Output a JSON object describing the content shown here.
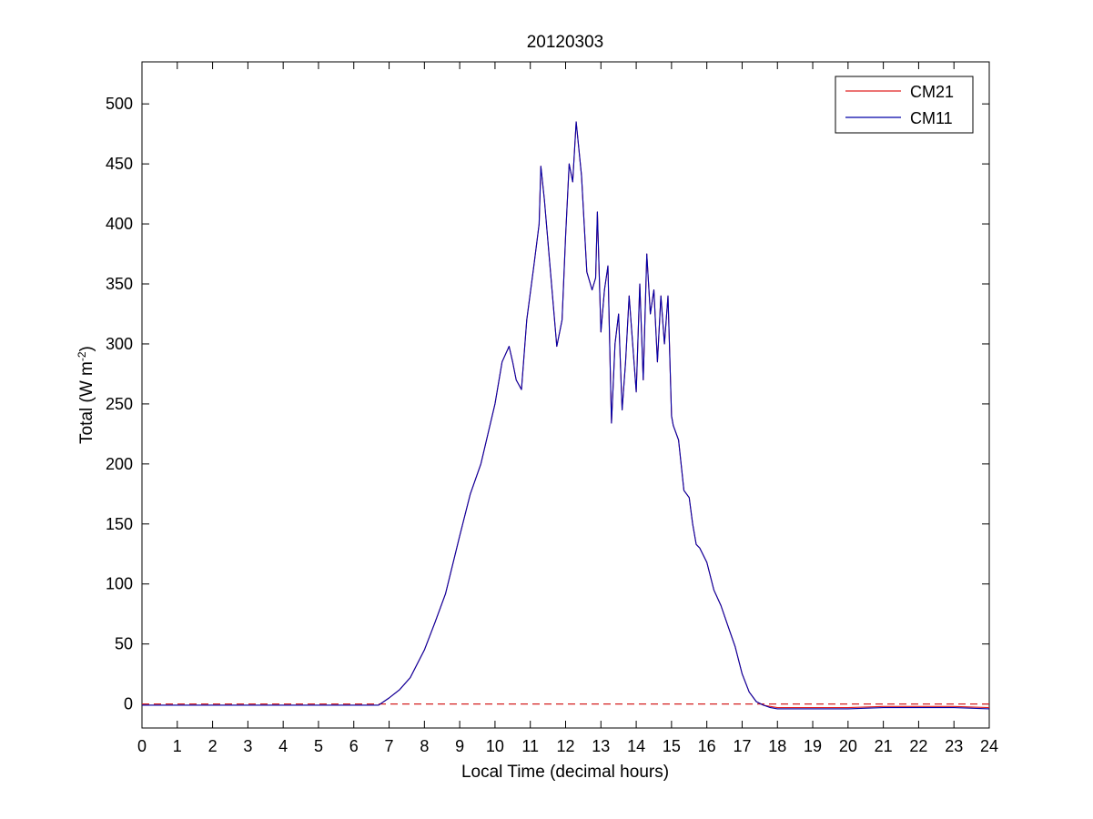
{
  "chart_data": {
    "type": "line",
    "title": "20120303",
    "xlabel": "Local Time (decimal hours)",
    "ylabel_main": "Total (W m",
    "ylabel_sup": "-2",
    "ylabel_close": ")",
    "xlim": [
      0,
      24
    ],
    "ylim": [
      -20,
      535
    ],
    "xticks": [
      0,
      1,
      2,
      3,
      4,
      5,
      6,
      7,
      8,
      9,
      10,
      11,
      12,
      13,
      14,
      15,
      16,
      17,
      18,
      19,
      20,
      21,
      22,
      23,
      24
    ],
    "yticks": [
      0,
      50,
      100,
      150,
      200,
      250,
      300,
      350,
      400,
      450,
      500
    ],
    "grid": false,
    "legend": "top-right",
    "reference_line": {
      "y": 0,
      "color": "#d42020",
      "style": "dashed"
    },
    "series": [
      {
        "name": "CM21",
        "color": "#e02020",
        "x": [
          0,
          1,
          2,
          3,
          4,
          5,
          6,
          6.7,
          7.0,
          7.3,
          7.6,
          8.0,
          8.3,
          8.6,
          9.0,
          9.3,
          9.6,
          10.0,
          10.2,
          10.4,
          10.5,
          10.6,
          10.75,
          10.9,
          11.1,
          11.25,
          11.3,
          11.4,
          11.55,
          11.75,
          11.9,
          12.0,
          12.1,
          12.2,
          12.3,
          12.45,
          12.6,
          12.75,
          12.85,
          12.9,
          13.0,
          13.1,
          13.2,
          13.3,
          13.4,
          13.5,
          13.6,
          13.7,
          13.8,
          13.9,
          14.0,
          14.1,
          14.2,
          14.3,
          14.4,
          14.5,
          14.6,
          14.7,
          14.8,
          14.9,
          15.0,
          15.05,
          15.2,
          15.35,
          15.5,
          15.6,
          15.7,
          15.8,
          16.0,
          16.2,
          16.4,
          16.6,
          16.8,
          17.0,
          17.2,
          17.4,
          17.6,
          17.8,
          18.0,
          18.2,
          19,
          20,
          21,
          22,
          23,
          24
        ],
        "y": [
          -1,
          -1,
          -1,
          -1,
          -1,
          -1,
          -1,
          -1,
          5,
          12,
          22,
          45,
          68,
          92,
          140,
          175,
          200,
          250,
          285,
          298,
          285,
          270,
          262,
          320,
          365,
          400,
          448,
          420,
          368,
          298,
          320,
          390,
          450,
          435,
          485,
          440,
          360,
          345,
          355,
          410,
          310,
          345,
          365,
          234,
          300,
          325,
          245,
          285,
          340,
          300,
          260,
          350,
          270,
          375,
          325,
          345,
          285,
          340,
          300,
          340,
          240,
          232,
          220,
          178,
          172,
          150,
          133,
          130,
          118,
          95,
          82,
          65,
          48,
          25,
          10,
          2,
          -1,
          -2,
          -3,
          -3,
          -3,
          -3,
          -2,
          -2,
          -2,
          -3
        ]
      },
      {
        "name": "CM11",
        "color": "#0000a8",
        "x": [
          0,
          1,
          2,
          3,
          4,
          5,
          6,
          6.7,
          7.0,
          7.3,
          7.6,
          8.0,
          8.3,
          8.6,
          9.0,
          9.3,
          9.6,
          10.0,
          10.2,
          10.4,
          10.5,
          10.6,
          10.75,
          10.9,
          11.1,
          11.25,
          11.3,
          11.4,
          11.55,
          11.75,
          11.9,
          12.0,
          12.1,
          12.2,
          12.3,
          12.45,
          12.6,
          12.75,
          12.85,
          12.9,
          13.0,
          13.1,
          13.2,
          13.3,
          13.4,
          13.5,
          13.6,
          13.7,
          13.8,
          13.9,
          14.0,
          14.1,
          14.2,
          14.3,
          14.4,
          14.5,
          14.6,
          14.7,
          14.8,
          14.9,
          15.0,
          15.05,
          15.2,
          15.35,
          15.5,
          15.6,
          15.7,
          15.8,
          16.0,
          16.2,
          16.4,
          16.6,
          16.8,
          17.0,
          17.2,
          17.4,
          17.6,
          17.8,
          18.0,
          18.2,
          19,
          20,
          21,
          22,
          23,
          24
        ],
        "y": [
          -1,
          -1,
          -1,
          -1,
          -1,
          -1,
          -1,
          -1,
          5,
          12,
          22,
          45,
          68,
          92,
          140,
          175,
          200,
          250,
          285,
          298,
          285,
          270,
          262,
          320,
          365,
          400,
          448,
          420,
          368,
          298,
          320,
          390,
          450,
          435,
          485,
          440,
          360,
          345,
          355,
          410,
          310,
          345,
          365,
          234,
          300,
          325,
          245,
          285,
          340,
          300,
          260,
          350,
          270,
          375,
          325,
          345,
          285,
          340,
          300,
          340,
          240,
          232,
          220,
          178,
          172,
          150,
          133,
          130,
          118,
          95,
          82,
          65,
          48,
          25,
          10,
          2,
          -1,
          -3,
          -4,
          -4,
          -4,
          -4,
          -3,
          -3,
          -3,
          -4
        ]
      }
    ]
  }
}
